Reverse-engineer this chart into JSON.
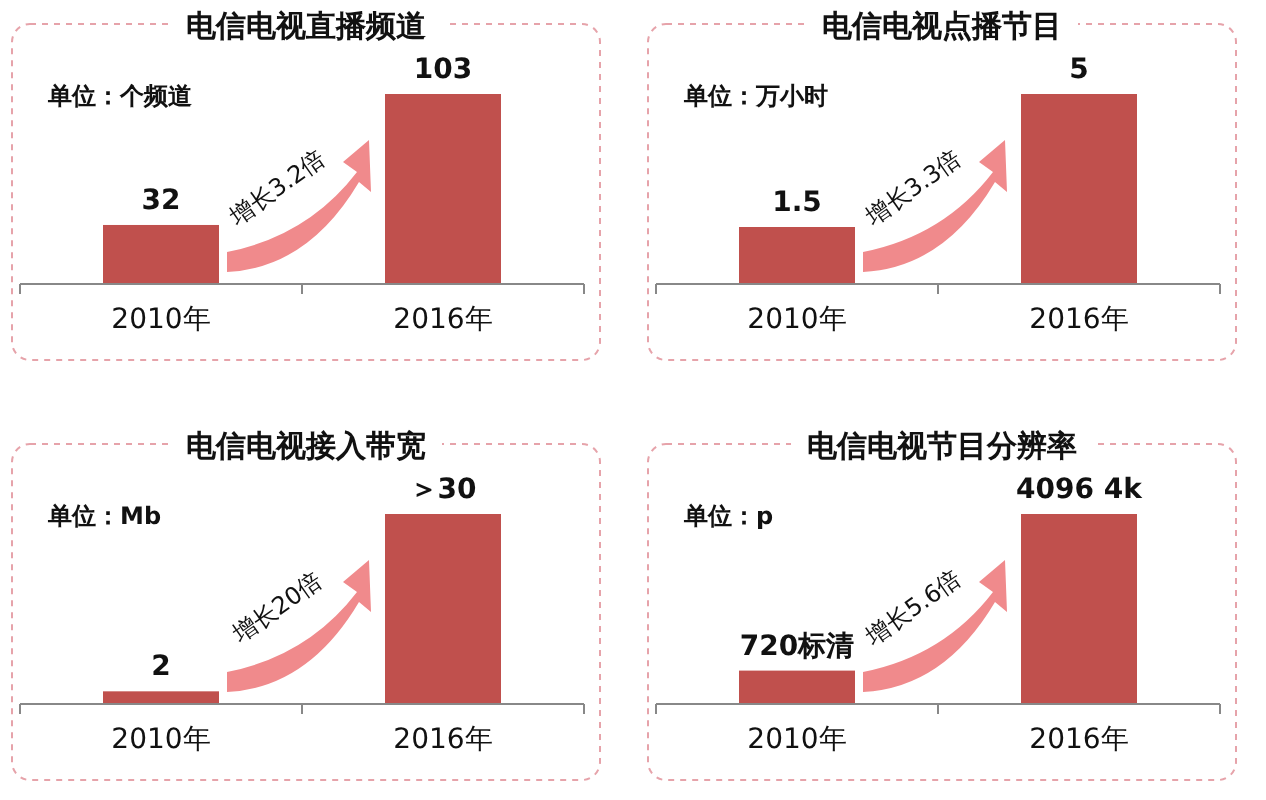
{
  "chart_data": [
    {
      "type": "bar",
      "title": "电信电视直播频道",
      "categories": [
        "2010年",
        "2016年"
      ],
      "values": [
        32,
        103
      ],
      "color": "#c0504d",
      "data_labels": true,
      "annotations": [
        "单位：个频道",
        "增长3.2倍"
      ]
    },
    {
      "type": "bar",
      "title": "电信电视点播节目",
      "categories": [
        "2010年",
        "2016年"
      ],
      "values": [
        1.5,
        5
      ],
      "color": "#c0504d",
      "data_labels": true,
      "annotations": [
        "单位：万小时",
        "增长3.3倍"
      ]
    },
    {
      "type": "bar",
      "title": "电信电视接入带宽",
      "categories": [
        "2010年",
        "2016年"
      ],
      "values": [
        2,
        30
      ],
      "color": "#c0504d",
      "value_labels": [
        "2",
        "＞30"
      ],
      "annotations": [
        "单位：Mb",
        "增长20倍"
      ]
    },
    {
      "type": "bar",
      "title": "电信电视节目分辨率",
      "categories": [
        "2010年",
        "2016年"
      ],
      "values": [
        720,
        4096
      ],
      "color": "#c0504d",
      "value_labels": [
        "720标清",
        "4096 4k"
      ],
      "annotations": [
        "单位：p",
        "增长5.6倍"
      ]
    }
  ]
}
